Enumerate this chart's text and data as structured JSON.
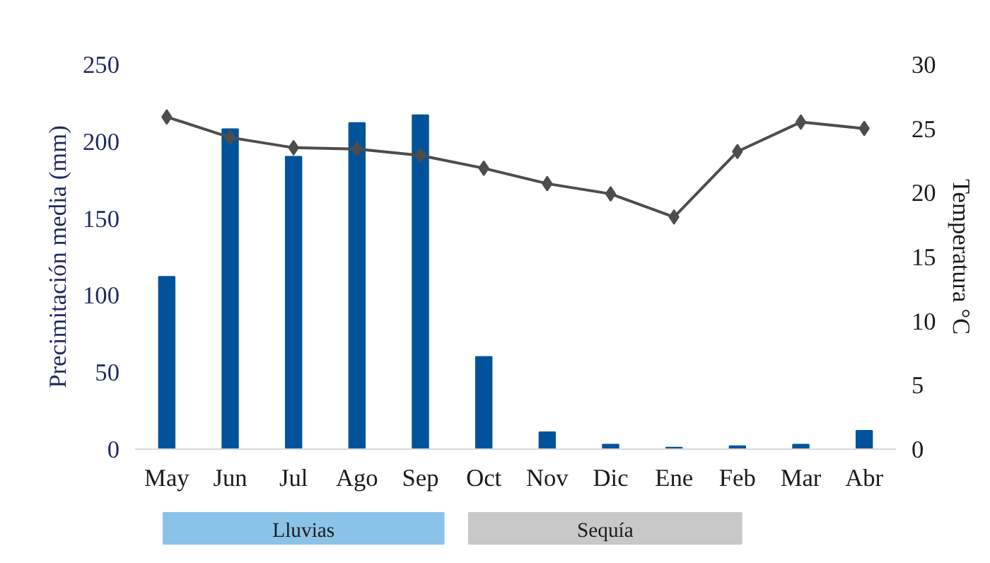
{
  "chart_data": {
    "type": "bar",
    "ylabel": "Precimitación media (mm)",
    "y2label": "Temperatura °C",
    "categories": [
      "May",
      "Jun",
      "Jul",
      "Ago",
      "Sep",
      "Oct",
      "Nov",
      "Dic",
      "Ene",
      "Feb",
      "Mar",
      "Abr"
    ],
    "series": [
      {
        "color": "#00539b",
        "values": [
          112,
          208,
          190,
          212,
          217,
          60,
          11,
          3,
          1,
          2,
          3,
          12
        ]
      },
      {
        "type": "line",
        "axis": "y2",
        "color": "#4d4d4d",
        "marker": "diamond",
        "line_style": "solid",
        "values": [
          25.9,
          24.3,
          23.5,
          23.4,
          22.9,
          21.9,
          20.7,
          19.9,
          18.1,
          23.2,
          25.5,
          25.0
        ]
      }
    ],
    "ylim": [
      0,
      250
    ],
    "yticks": [
      0,
      50,
      100,
      150,
      200,
      250
    ],
    "y2lim": [
      0,
      30
    ],
    "y2ticks": [
      0,
      5,
      10,
      15,
      20,
      25,
      30
    ],
    "annotations": [
      "Lluvias",
      "Sequía"
    ],
    "grid": false,
    "legend": false
  }
}
